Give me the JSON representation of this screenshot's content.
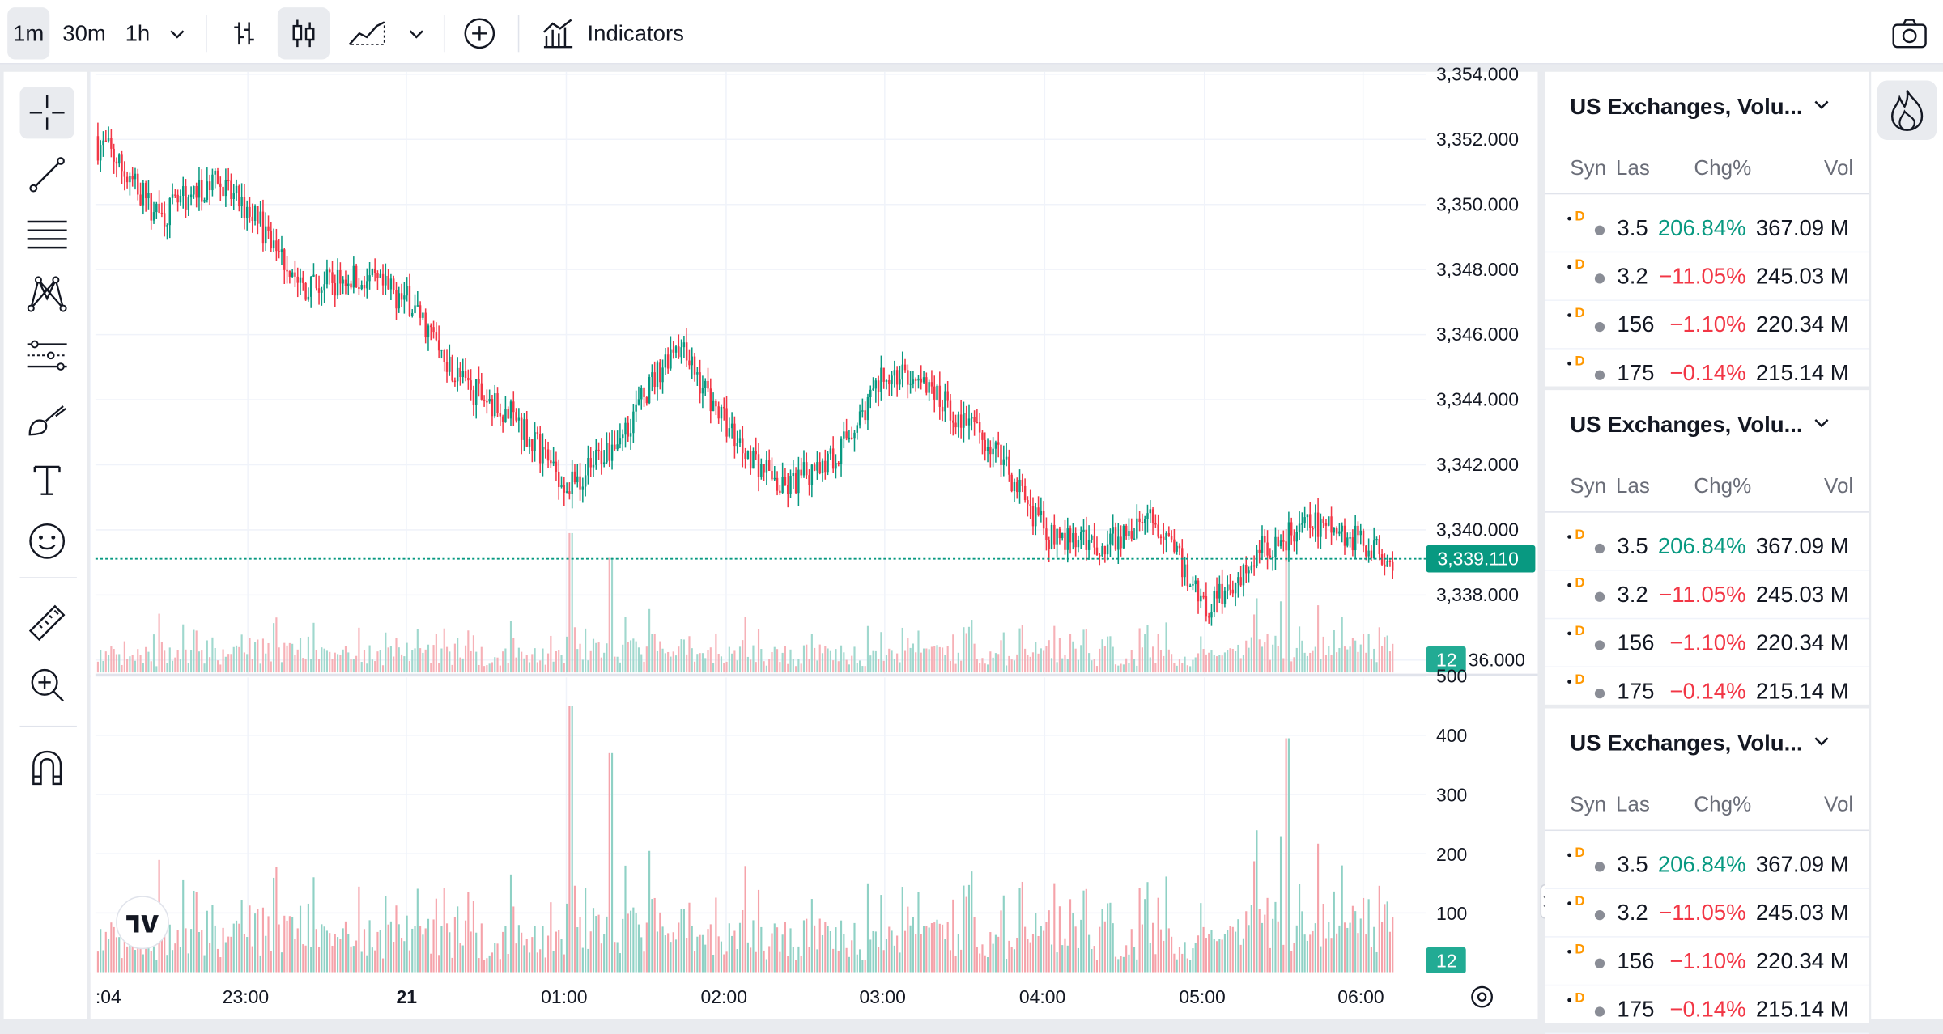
{
  "toolbar": {
    "intervals": [
      "1m",
      "30m",
      "1h"
    ],
    "active_interval": "1m",
    "indicators_label": "Indicators"
  },
  "price_axis": {
    "labels": [
      "3,354.000",
      "3,352.000",
      "3,350.000",
      "3,348.000",
      "3,346.000",
      "3,344.000",
      "3,342.000",
      "3,340.000",
      "3,338.000",
      "36.000"
    ],
    "current_price": "3,339.110",
    "volume_badge": "12"
  },
  "volume_axis": {
    "labels": [
      "500",
      "400",
      "300",
      "200",
      "100"
    ],
    "volume_badge": "12"
  },
  "time_axis": {
    "labels": [
      ":04",
      "23:00",
      "21",
      "01:00",
      "02:00",
      "03:00",
      "04:00",
      "05:00",
      "06:00"
    ]
  },
  "watchlists": [
    {
      "title": "US Exchanges, Volu...",
      "columns": [
        "Syn",
        "Las",
        "Chg%",
        "Vol"
      ],
      "rows": [
        {
          "badge": "D",
          "last": "3.5",
          "chg": "206.84%",
          "vol": "367.09 M",
          "dir": "pos"
        },
        {
          "badge": "D",
          "last": "3.2",
          "chg": "−11.05%",
          "vol": "245.03 M",
          "dir": "neg"
        },
        {
          "badge": "D",
          "last": "156",
          "chg": "−1.10%",
          "vol": "220.34 M",
          "dir": "neg"
        },
        {
          "badge": "D",
          "last": "175",
          "chg": "−0.14%",
          "vol": "215.14 M",
          "dir": "neg"
        }
      ]
    },
    {
      "title": "US Exchanges, Volu...",
      "columns": [
        "Syn",
        "Las",
        "Chg%",
        "Vol"
      ],
      "rows": [
        {
          "badge": "D",
          "last": "3.5",
          "chg": "206.84%",
          "vol": "367.09 M",
          "dir": "pos"
        },
        {
          "badge": "D",
          "last": "3.2",
          "chg": "−11.05%",
          "vol": "245.03 M",
          "dir": "neg"
        },
        {
          "badge": "D",
          "last": "156",
          "chg": "−1.10%",
          "vol": "220.34 M",
          "dir": "neg"
        },
        {
          "badge": "D",
          "last": "175",
          "chg": "−0.14%",
          "vol": "215.14 M",
          "dir": "neg"
        }
      ]
    },
    {
      "title": "US Exchanges, Volu...",
      "columns": [
        "Syn",
        "Las",
        "Chg%",
        "Vol"
      ],
      "rows": [
        {
          "badge": "D",
          "last": "3.5",
          "chg": "206.84%",
          "vol": "367.09 M",
          "dir": "pos"
        },
        {
          "badge": "D",
          "last": "3.2",
          "chg": "−11.05%",
          "vol": "245.03 M",
          "dir": "neg"
        },
        {
          "badge": "D",
          "last": "156",
          "chg": "−1.10%",
          "vol": "220.34 M",
          "dir": "neg"
        },
        {
          "badge": "D",
          "last": "175",
          "chg": "−0.14%",
          "vol": "215.14 M",
          "dir": "neg"
        }
      ]
    }
  ],
  "colors": {
    "up": "#089981",
    "down": "#f23645",
    "up_volume": "#8fd1c5",
    "down_volume": "#f5a3aa",
    "price_line": "#089981",
    "badge_d": "#ff9800",
    "grid": "#f0f3fa"
  },
  "icons": {
    "left_tools": [
      "crosshair-icon",
      "trend-line-icon",
      "fib-retracement-icon",
      "pattern-icon",
      "prediction-icon",
      "brush-icon",
      "text-icon",
      "emoji-icon",
      "ruler-icon",
      "zoom-in-icon",
      "magnet-icon"
    ],
    "top": [
      "chevron-down-icon",
      "bar-chart-icon",
      "candles-icon",
      "area-chart-icon",
      "add-compare-icon",
      "indicators-icon",
      "camera-icon"
    ],
    "right": [
      "hotlist-flame-icon"
    ]
  },
  "chart_data": {
    "type": "candlestick",
    "price_range": [
      3336.0,
      3354.0
    ],
    "volume_range": [
      0,
      500
    ],
    "last_price": 3339.11,
    "time_labels": [
      ":04",
      "23:00",
      "21",
      "01:00",
      "02:00",
      "03:00",
      "04:00",
      "05:00",
      "06:00"
    ],
    "close_path": [
      {
        "t": "22:05",
        "close": 3351.8
      },
      {
        "t": "22:25",
        "close": 3349.6
      },
      {
        "t": "22:45",
        "close": 3350.7
      },
      {
        "t": "23:00",
        "close": 3349.8
      },
      {
        "t": "23:20",
        "close": 3347.4
      },
      {
        "t": "23:40",
        "close": 3347.8
      },
      {
        "t": "00:00",
        "close": 3347.0
      },
      {
        "t": "00:20",
        "close": 3344.5
      },
      {
        "t": "00:40",
        "close": 3343.4
      },
      {
        "t": "01:00",
        "close": 3341.3
      },
      {
        "t": "01:20",
        "close": 3343.0
      },
      {
        "t": "01:40",
        "close": 3345.8
      },
      {
        "t": "02:00",
        "close": 3343.1
      },
      {
        "t": "02:20",
        "close": 3341.2
      },
      {
        "t": "02:40",
        "close": 3342.3
      },
      {
        "t": "03:00",
        "close": 3344.9
      },
      {
        "t": "03:20",
        "close": 3344.0
      },
      {
        "t": "03:40",
        "close": 3342.5
      },
      {
        "t": "04:00",
        "close": 3339.8
      },
      {
        "t": "04:20",
        "close": 3339.5
      },
      {
        "t": "04:40",
        "close": 3340.3
      },
      {
        "t": "05:00",
        "close": 3337.6
      },
      {
        "t": "05:20",
        "close": 3339.4
      },
      {
        "t": "05:40",
        "close": 3340.2
      },
      {
        "t": "06:00",
        "close": 3339.6
      },
      {
        "t": "06:10",
        "close": 3339.11
      }
    ],
    "volume_peaks": [
      {
        "t": "01:00",
        "volume": 450
      },
      {
        "t": "01:15",
        "volume": 370
      },
      {
        "t": "05:30",
        "volume": 395
      }
    ]
  }
}
